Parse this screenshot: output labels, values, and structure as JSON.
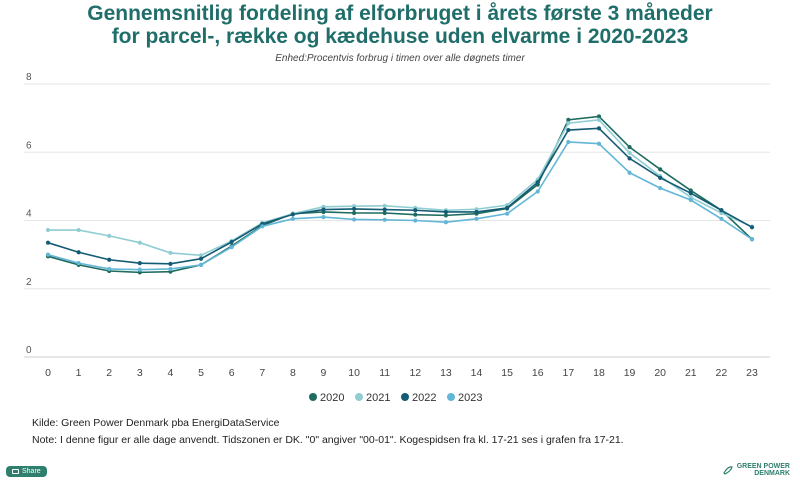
{
  "header": {
    "title_line1": "Gennemsnitlig fordeling af elforbruget i årets første 3 måneder",
    "title_line2": "for parcel-, række og kædehuse uden elvarme i 2020-2023",
    "subtitle": "Enhed:Procentvis forbrug i timen over alle døgnets timer"
  },
  "chart_data": {
    "type": "line",
    "x": [
      0,
      1,
      2,
      3,
      4,
      5,
      6,
      7,
      8,
      9,
      10,
      11,
      12,
      13,
      14,
      15,
      16,
      17,
      18,
      19,
      20,
      21,
      22,
      23
    ],
    "ylim": [
      0,
      8
    ],
    "yticks": [
      0,
      2,
      4,
      6,
      8
    ],
    "grid": true,
    "legend_placement": "bottom-center",
    "series": [
      {
        "name": "2020",
        "color": "#1e6b5f",
        "values": [
          2.95,
          2.7,
          2.52,
          2.48,
          2.5,
          2.7,
          3.25,
          3.85,
          4.2,
          4.25,
          4.22,
          4.22,
          4.17,
          4.15,
          4.2,
          4.35,
          5.05,
          6.95,
          7.05,
          6.15,
          5.5,
          4.88,
          4.3,
          3.45
        ]
      },
      {
        "name": "2021",
        "color": "#8fcdd3",
        "values": [
          3.72,
          3.72,
          3.55,
          3.35,
          3.05,
          2.98,
          3.4,
          3.93,
          4.2,
          4.4,
          4.42,
          4.43,
          4.37,
          4.3,
          4.33,
          4.45,
          5.2,
          6.85,
          6.95,
          5.98,
          5.3,
          4.68,
          4.22,
          3.82
        ]
      },
      {
        "name": "2022",
        "color": "#145b74",
        "values": [
          3.35,
          3.07,
          2.85,
          2.75,
          2.73,
          2.88,
          3.37,
          3.9,
          4.18,
          4.32,
          4.34,
          4.32,
          4.3,
          4.25,
          4.25,
          4.37,
          5.12,
          6.65,
          6.7,
          5.82,
          5.25,
          4.8,
          4.3,
          3.8
        ]
      },
      {
        "name": "2023",
        "color": "#62b6d6",
        "values": [
          3.0,
          2.75,
          2.58,
          2.56,
          2.58,
          2.7,
          3.22,
          3.83,
          4.05,
          4.1,
          4.03,
          4.02,
          4.0,
          3.95,
          4.05,
          4.2,
          4.85,
          6.3,
          6.25,
          5.4,
          4.95,
          4.6,
          4.05,
          3.45
        ]
      }
    ]
  },
  "footer": {
    "source": "Kilde: Green Power Denmark pba EnergiDataService",
    "note": "Note: I denne figur er alle dage anvendt. Tidszonen er DK. \"0\" angiver \"00-01\". Kogespidsen fra kl. 17-21 ses i grafen fra 17-21."
  },
  "share": {
    "label": "Share",
    "icon": "share-icon"
  },
  "logo": {
    "line1": "GREEN POWER",
    "line2": "DENMARK",
    "icon": "leaf-icon"
  }
}
